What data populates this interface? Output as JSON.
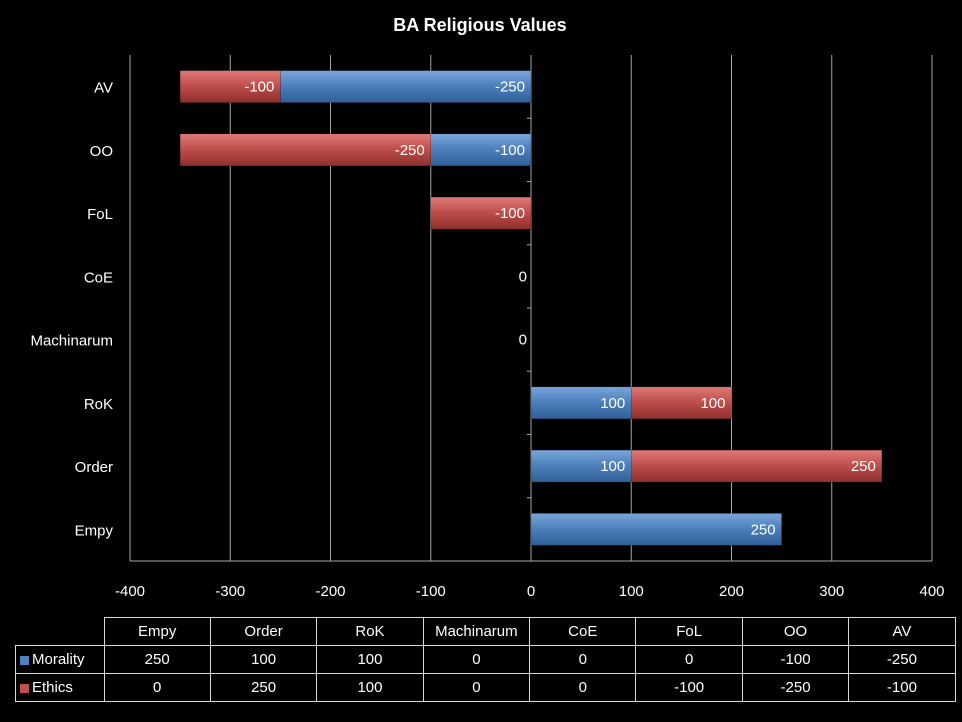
{
  "chart_data": {
    "type": "bar",
    "orientation": "horizontal",
    "stacked": true,
    "title": "BA Religious Values",
    "categories": [
      "Empy",
      "Order",
      "RoK",
      "Machinarum",
      "CoE",
      "FoL",
      "OO",
      "AV"
    ],
    "series": [
      {
        "name": "Morality",
        "color": "#4f81bd",
        "values": [
          250,
          100,
          100,
          0,
          0,
          0,
          -100,
          -250
        ]
      },
      {
        "name": "Ethics",
        "color": "#c0504d",
        "values": [
          0,
          250,
          100,
          0,
          0,
          -100,
          -250,
          -100
        ]
      }
    ],
    "xlim": [
      -400,
      400
    ],
    "xticks": [
      "-400",
      "-300",
      "-200",
      "-100",
      "0",
      "100",
      "200",
      "300",
      "400"
    ],
    "grid": true,
    "legend": "data-table"
  }
}
